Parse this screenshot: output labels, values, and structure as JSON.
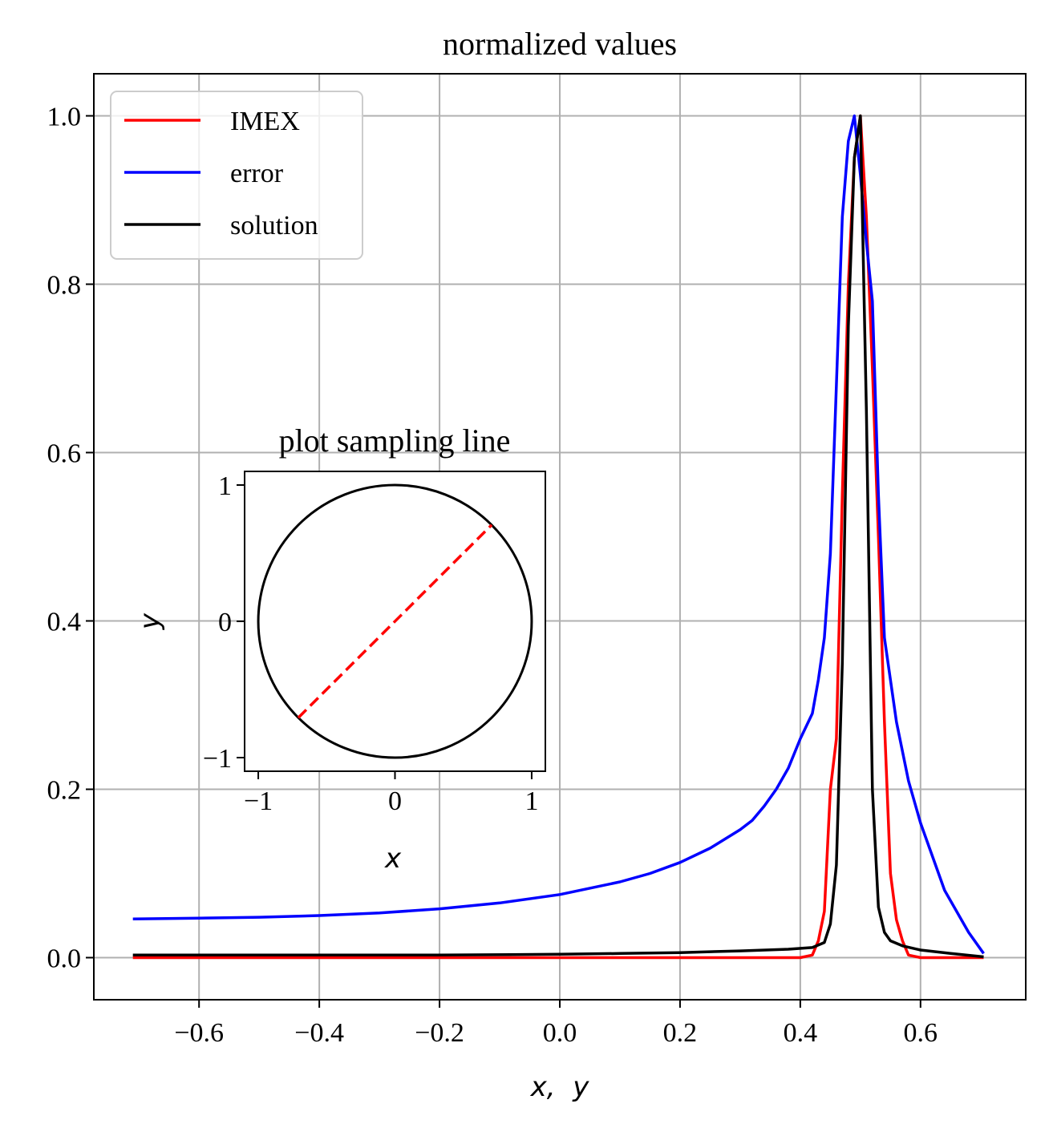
{
  "chart_data": [
    {
      "type": "line",
      "title": "normalized values",
      "xlabel": "x,  y",
      "ylabel": "",
      "xlim": [
        -0.775,
        0.775
      ],
      "ylim": [
        -0.05,
        1.05
      ],
      "xticks": [
        -0.6,
        -0.4,
        -0.2,
        0.0,
        0.2,
        0.4,
        0.6
      ],
      "xtick_labels": [
        "−0.6",
        "−0.4",
        "−0.2",
        "0.0",
        "0.2",
        "0.4",
        "0.6"
      ],
      "yticks": [
        0.0,
        0.2,
        0.4,
        0.6,
        0.8,
        1.0
      ],
      "ytick_labels": [
        "0.0",
        "0.2",
        "0.4",
        "0.6",
        "0.8",
        "1.0"
      ],
      "grid": true,
      "legend_position": "upper-left",
      "series": [
        {
          "name": "IMEX",
          "color": "#ff0000",
          "points": [
            [
              -0.71,
              0.0
            ],
            [
              -0.4,
              0.0
            ],
            [
              0.0,
              0.0
            ],
            [
              0.2,
              0.0
            ],
            [
              0.4,
              0.0
            ],
            [
              0.42,
              0.003
            ],
            [
              0.43,
              0.02
            ],
            [
              0.44,
              0.055
            ],
            [
              0.45,
              0.2
            ],
            [
              0.46,
              0.26
            ],
            [
              0.47,
              0.55
            ],
            [
              0.48,
              0.8
            ],
            [
              0.49,
              0.95
            ],
            [
              0.5,
              1.0
            ],
            [
              0.51,
              0.88
            ],
            [
              0.52,
              0.7
            ],
            [
              0.53,
              0.5
            ],
            [
              0.54,
              0.28
            ],
            [
              0.55,
              0.1
            ],
            [
              0.56,
              0.045
            ],
            [
              0.57,
              0.02
            ],
            [
              0.58,
              0.003
            ],
            [
              0.6,
              0.0
            ],
            [
              0.65,
              0.0
            ],
            [
              0.705,
              0.0
            ]
          ]
        },
        {
          "name": "error",
          "color": "#0000ff",
          "points": [
            [
              -0.71,
              0.046
            ],
            [
              -0.6,
              0.047
            ],
            [
              -0.5,
              0.048
            ],
            [
              -0.4,
              0.05
            ],
            [
              -0.3,
              0.053
            ],
            [
              -0.2,
              0.058
            ],
            [
              -0.1,
              0.065
            ],
            [
              0.0,
              0.075
            ],
            [
              0.1,
              0.09
            ],
            [
              0.15,
              0.1
            ],
            [
              0.2,
              0.113
            ],
            [
              0.25,
              0.13
            ],
            [
              0.3,
              0.152
            ],
            [
              0.32,
              0.163
            ],
            [
              0.34,
              0.18
            ],
            [
              0.36,
              0.2
            ],
            [
              0.38,
              0.225
            ],
            [
              0.4,
              0.26
            ],
            [
              0.42,
              0.29
            ],
            [
              0.43,
              0.33
            ],
            [
              0.44,
              0.38
            ],
            [
              0.45,
              0.48
            ],
            [
              0.46,
              0.68
            ],
            [
              0.47,
              0.88
            ],
            [
              0.48,
              0.97
            ],
            [
              0.49,
              1.0
            ],
            [
              0.5,
              0.93
            ],
            [
              0.51,
              0.85
            ],
            [
              0.52,
              0.78
            ],
            [
              0.53,
              0.55
            ],
            [
              0.54,
              0.38
            ],
            [
              0.55,
              0.33
            ],
            [
              0.56,
              0.28
            ],
            [
              0.58,
              0.21
            ],
            [
              0.6,
              0.16
            ],
            [
              0.62,
              0.12
            ],
            [
              0.64,
              0.08
            ],
            [
              0.66,
              0.055
            ],
            [
              0.68,
              0.03
            ],
            [
              0.705,
              0.005
            ]
          ]
        },
        {
          "name": "solution",
          "color": "#000000",
          "points": [
            [
              -0.71,
              0.003
            ],
            [
              -0.4,
              0.003
            ],
            [
              -0.2,
              0.003
            ],
            [
              0.0,
              0.004
            ],
            [
              0.1,
              0.005
            ],
            [
              0.2,
              0.006
            ],
            [
              0.3,
              0.008
            ],
            [
              0.38,
              0.01
            ],
            [
              0.42,
              0.012
            ],
            [
              0.44,
              0.018
            ],
            [
              0.45,
              0.04
            ],
            [
              0.46,
              0.11
            ],
            [
              0.47,
              0.35
            ],
            [
              0.48,
              0.75
            ],
            [
              0.49,
              0.95
            ],
            [
              0.5,
              1.0
            ],
            [
              0.51,
              0.65
            ],
            [
              0.52,
              0.2
            ],
            [
              0.53,
              0.06
            ],
            [
              0.54,
              0.03
            ],
            [
              0.55,
              0.02
            ],
            [
              0.57,
              0.014
            ],
            [
              0.6,
              0.009
            ],
            [
              0.65,
              0.005
            ],
            [
              0.705,
              0.001
            ]
          ]
        }
      ]
    },
    {
      "type": "line",
      "title": "plot sampling line",
      "xlabel": "x",
      "ylabel": "y",
      "xlim": [
        -1.1,
        1.1
      ],
      "ylim": [
        -1.1,
        1.1
      ],
      "xticks": [
        -1,
        0,
        1
      ],
      "xtick_labels": [
        "−1",
        "0",
        "1"
      ],
      "yticks": [
        -1,
        0,
        1
      ],
      "ytick_labels": [
        "−1",
        "0",
        "1"
      ],
      "grid": false,
      "shapes": [
        {
          "kind": "circle",
          "center": [
            0,
            0
          ],
          "radius": 1,
          "color": "#000000",
          "style": "solid"
        },
        {
          "kind": "segment",
          "from": [
            -0.7071,
            -0.7071
          ],
          "to": [
            0.7071,
            0.7071
          ],
          "color": "#ff0000",
          "style": "dashed"
        }
      ]
    }
  ]
}
